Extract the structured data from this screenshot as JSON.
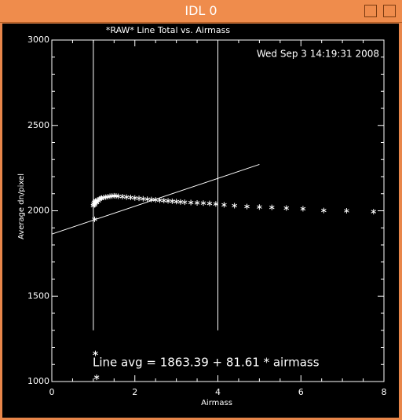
{
  "window": {
    "title": "IDL 0"
  },
  "chart_data": {
    "type": "scatter",
    "title": "*RAW* Line Total vs. Airmass",
    "timestamp": "Wed Sep  3 14:19:31 2008",
    "x_label": "Airmass",
    "y_label": "Average dn/pixel",
    "annotation": "Line avg = 1863.39 + 81.61 * airmass",
    "color": "#ffffff",
    "x": [
      1.0,
      1.01,
      1.02,
      1.03,
      1.04,
      1.05,
      1.06,
      1.08,
      1.1,
      1.12,
      1.15,
      1.18,
      1.2,
      1.25,
      1.3,
      1.35,
      1.4,
      1.45,
      1.5,
      1.55,
      1.6,
      1.7,
      1.8,
      1.9,
      2.0,
      2.1,
      2.2,
      2.3,
      2.4,
      2.5,
      2.6,
      2.7,
      2.8,
      2.9,
      3.0,
      3.1,
      3.2,
      3.35,
      3.5,
      3.65,
      3.8,
      3.95,
      4.15,
      4.4,
      4.7,
      5.0,
      5.3,
      5.65,
      6.05,
      6.55,
      7.1,
      7.75,
      1.03,
      1.05,
      1.08
    ],
    "values": [
      2030,
      2040,
      2050,
      2035,
      2045,
      2055,
      2060,
      2048,
      2062,
      2058,
      2070,
      2072,
      2075,
      2078,
      2080,
      2082,
      2085,
      2086,
      2088,
      2087,
      2085,
      2083,
      2080,
      2078,
      2075,
      2073,
      2070,
      2068,
      2066,
      2064,
      2062,
      2060,
      2058,
      2056,
      2054,
      2052,
      2050,
      2048,
      2046,
      2045,
      2043,
      2040,
      2035,
      2030,
      2025,
      2022,
      2020,
      2016,
      2012,
      2002,
      2000,
      1995,
      1950,
      1165,
      1025
    ],
    "fit": {
      "intercept": 1863.39,
      "slope": 81.61,
      "x_range": [
        0,
        5
      ]
    },
    "vlines": [
      1,
      4
    ],
    "vline_ylim": [
      1300,
      3000
    ],
    "xlim": [
      0,
      8
    ],
    "xticks": [
      0,
      2,
      4,
      6,
      8
    ],
    "xminor": 4,
    "ylim": [
      1000,
      3000
    ],
    "yticks": [
      1000,
      1500,
      2000,
      2500,
      3000
    ],
    "yminor": 5
  }
}
